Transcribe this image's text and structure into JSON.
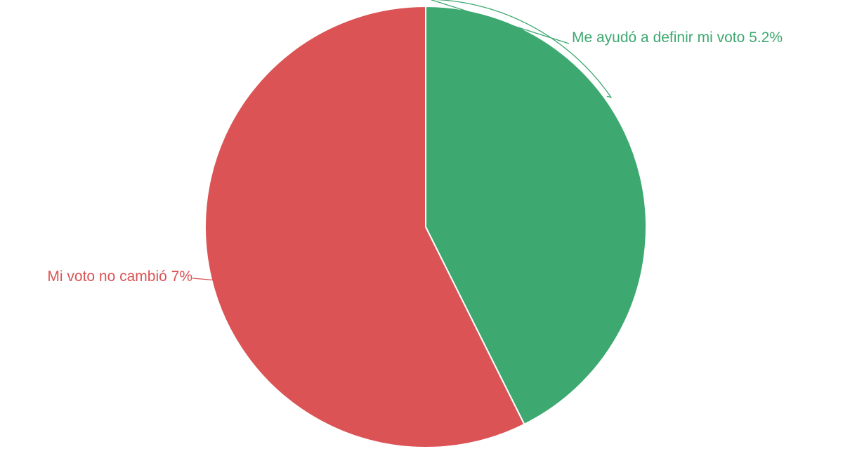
{
  "chart_data": {
    "type": "pie",
    "title": "",
    "slices": [
      {
        "label": "Me ayudó a definir mi voto 5.2%",
        "value": 5.2,
        "color": "#3da870"
      },
      {
        "label": "Mi voto no cambió 7%",
        "value": 7,
        "color": "#db5355"
      }
    ],
    "legend": "none",
    "start_angle_deg": 0,
    "direction": "clockwise"
  }
}
